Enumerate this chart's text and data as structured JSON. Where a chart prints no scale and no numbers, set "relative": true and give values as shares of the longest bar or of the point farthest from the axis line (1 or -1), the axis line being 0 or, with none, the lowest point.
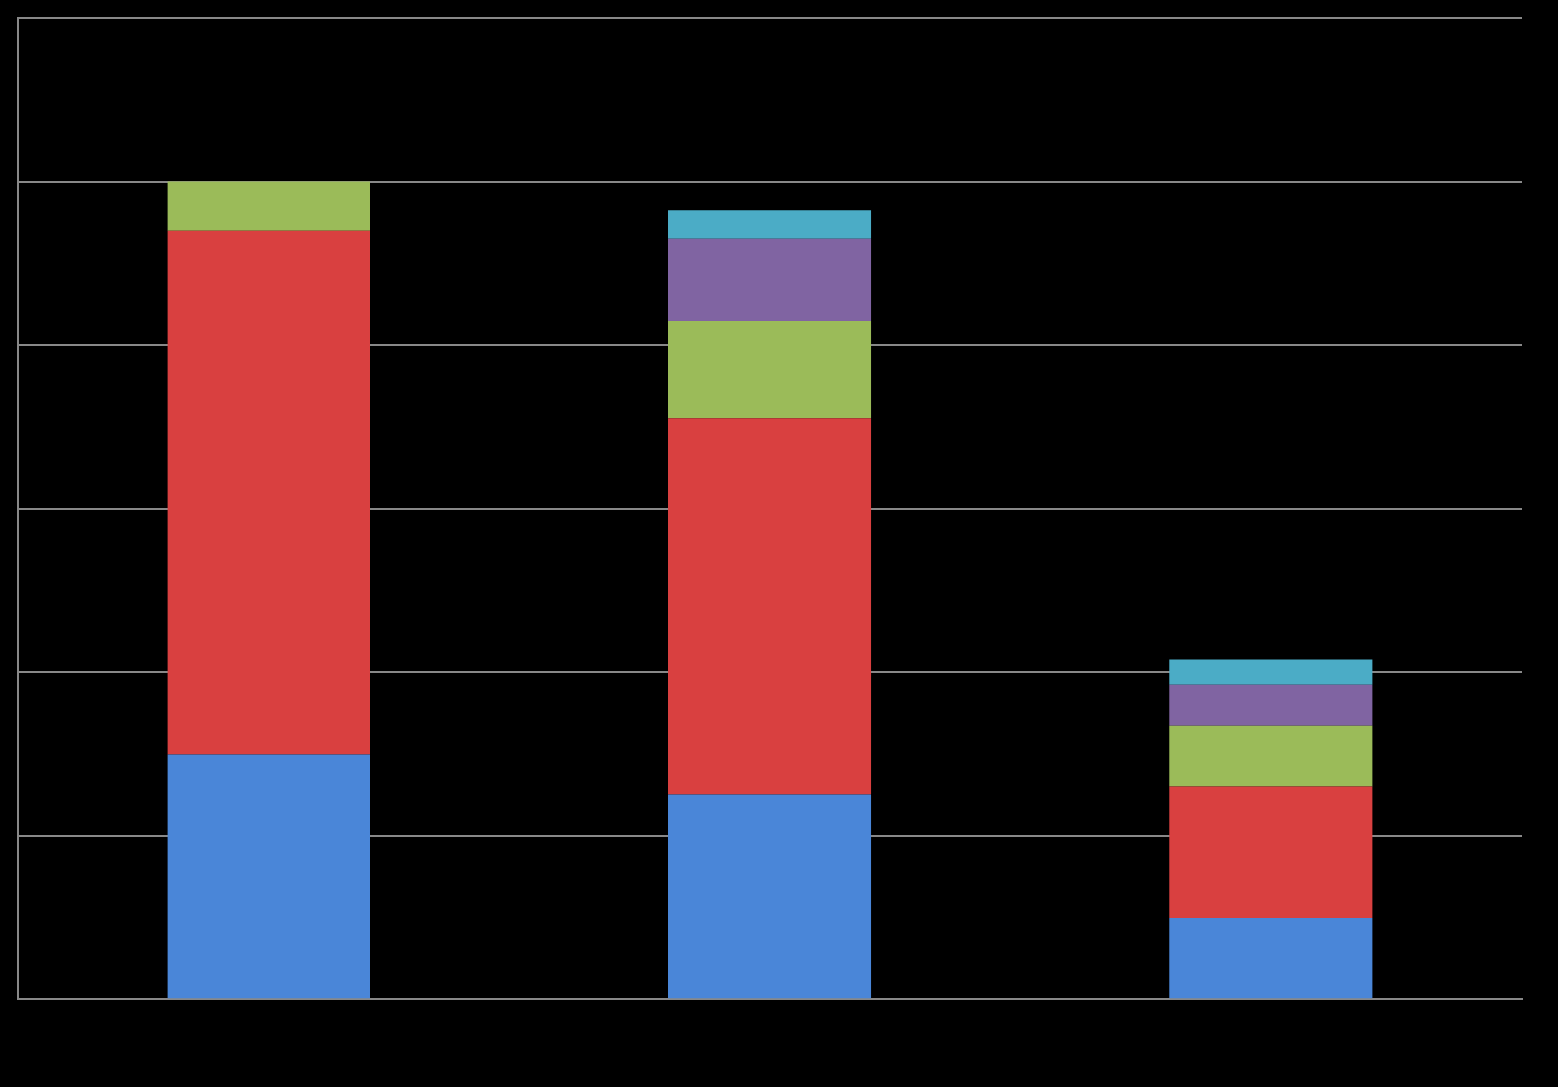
{
  "chart_data": {
    "type": "bar",
    "stacked": true,
    "relative": true,
    "grid": "y",
    "categories": [
      null,
      null,
      null
    ],
    "series": [
      {
        "color": "#4a86d8",
        "values": [
          0.3,
          0.25,
          0.1
        ]
      },
      {
        "color": "#d94040",
        "values": [
          0.64,
          0.46,
          0.16
        ]
      },
      {
        "color": "#9bbb59",
        "values": [
          0.06,
          0.12,
          0.075
        ]
      },
      {
        "color": "#8064a2",
        "values": [
          0,
          0.1,
          0.05
        ]
      },
      {
        "color": "#4bacc6",
        "values": [
          0,
          0.035,
          0.03
        ]
      }
    ]
  }
}
